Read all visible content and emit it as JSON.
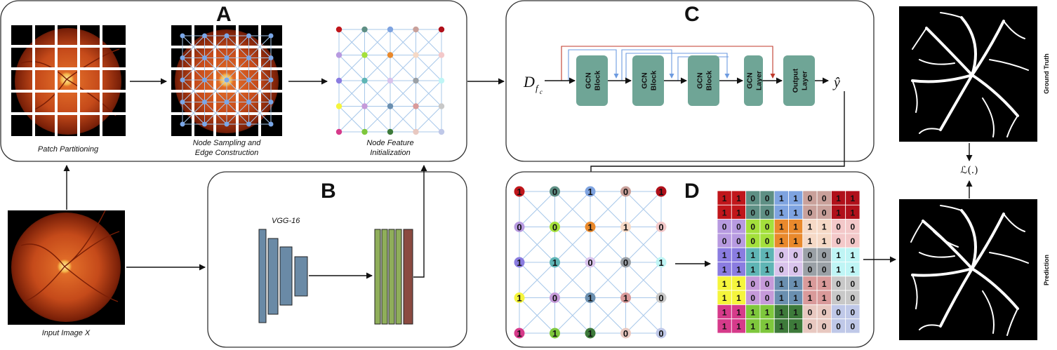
{
  "panels": {
    "A": {
      "label": "A",
      "captions": [
        "Patch Partitioning",
        "Node Sampling and",
        "Edge Construction",
        "Node Feature",
        "Initialization"
      ]
    },
    "B": {
      "label": "B",
      "backbone": "VGG-16"
    },
    "C": {
      "label": "C",
      "input": "D",
      "input_sub": "f",
      "input_subsub": "c",
      "output": "ŷ",
      "blocks": [
        {
          "line1": "GCN",
          "line2": "Block"
        },
        {
          "line1": "GCN",
          "line2": "Block"
        },
        {
          "line1": "GCN",
          "line2": "Block"
        },
        {
          "line1": "GCN",
          "line2": "Layer"
        },
        {
          "line1": "Output",
          "line2": "Layer"
        }
      ]
    },
    "D": {
      "label": "D"
    }
  },
  "input_caption": "Input Image X",
  "ground_truth_label": "Ground Truth",
  "prediction_label": "Prediction",
  "loss_label": "ℒ(.)",
  "node_colors": [
    [
      "#c0161b",
      "#5e8f84",
      "#7ea3e0",
      "#c9a09a",
      "#b0101a"
    ],
    [
      "#b79ae0",
      "#a4e03c",
      "#e9892c",
      "#f5d9c6",
      "#f3c8c9"
    ],
    [
      "#8a7ce0",
      "#5fb5b5",
      "#d9c3ec",
      "#9aa0a6",
      "#bff5f5"
    ],
    [
      "#f5f53c",
      "#c59ad9",
      "#6a8fb0",
      "#d99a9a",
      "#c8c8c8"
    ],
    [
      "#d63a8a",
      "#7ec73c",
      "#3d7a3a",
      "#e8c8c0",
      "#bfc8e8"
    ]
  ],
  "node_values": [
    [
      "1",
      "0",
      "1",
      "0",
      "1"
    ],
    [
      "0",
      "0",
      "1",
      "1",
      "0"
    ],
    [
      "1",
      "1",
      "0",
      "0",
      "1"
    ],
    [
      "1",
      "0",
      "1",
      "1",
      "0"
    ],
    [
      "1",
      "1",
      "1",
      "0",
      "0"
    ]
  ],
  "mask_rows": [
    [
      "1",
      "1",
      "0",
      "0",
      "1",
      "1",
      "0",
      "0",
      "1",
      "1"
    ],
    [
      "1",
      "1",
      "0",
      "0",
      "1",
      "1",
      "0",
      "0",
      "1",
      "1"
    ],
    [
      "0",
      "0",
      "0",
      "0",
      "1",
      "1",
      "1",
      "1",
      "0",
      "0"
    ],
    [
      "0",
      "0",
      "0",
      "0",
      "1",
      "1",
      "1",
      "1",
      "0",
      "0"
    ],
    [
      "1",
      "1",
      "1",
      "1",
      "0",
      "0",
      "0",
      "0",
      "1",
      "1"
    ],
    [
      "1",
      "1",
      "1",
      "1",
      "0",
      "0",
      "0",
      "0",
      "1",
      "1"
    ],
    [
      "1",
      "1",
      "0",
      "0",
      "1",
      "1",
      "1",
      "1",
      "0",
      "0"
    ],
    [
      "1",
      "1",
      "0",
      "0",
      "1",
      "1",
      "1",
      "1",
      "0",
      "0"
    ],
    [
      "1",
      "1",
      "1",
      "1",
      "1",
      "1",
      "0",
      "0",
      "0",
      "0"
    ],
    [
      "1",
      "1",
      "1",
      "1",
      "1",
      "1",
      "0",
      "0",
      "0",
      "0"
    ]
  ]
}
